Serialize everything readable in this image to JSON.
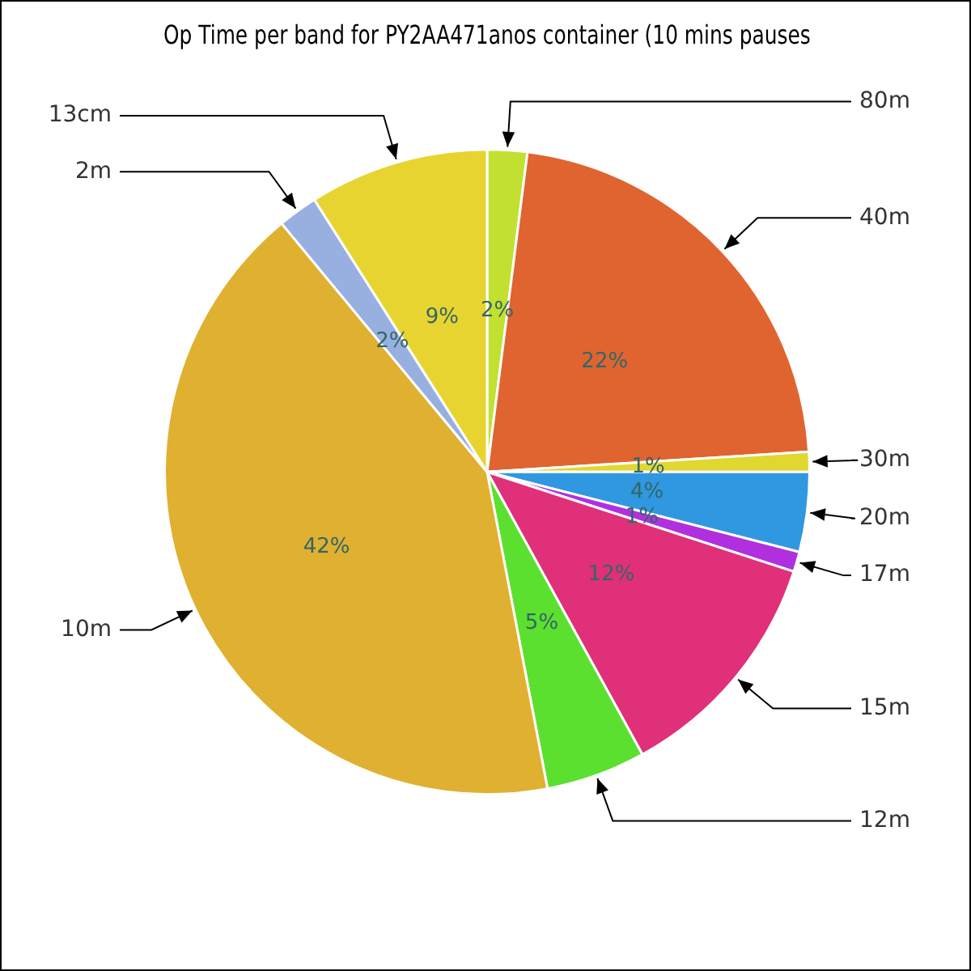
{
  "chart_data": {
    "type": "pie",
    "title": "Op Time per band for PY2AA471anos container (10 mins pauses",
    "categories": [
      "80m",
      "40m",
      "30m",
      "20m",
      "17m",
      "15m",
      "12m",
      "10m",
      "2m",
      "13cm"
    ],
    "values": [
      2,
      22,
      1,
      4,
      1,
      12,
      5,
      42,
      2,
      9
    ],
    "value_labels": [
      "2%",
      "22%",
      "1%",
      "4%",
      "1%",
      "12%",
      "5%",
      "42%",
      "2%",
      "9%"
    ],
    "colors": [
      "#c2e030",
      "#e06430",
      "#e0d830",
      "#3098e0",
      "#b030e0",
      "#e0307a",
      "#5ce030",
      "#e0b030",
      "#98b0e0",
      "#e8d430"
    ],
    "legend": false
  }
}
